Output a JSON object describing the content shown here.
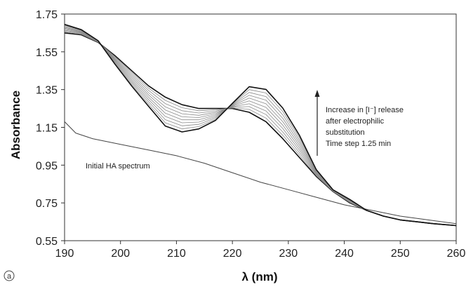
{
  "chart_data": {
    "type": "line",
    "title": "",
    "xlabel": "λ (nm)",
    "ylabel": "Absorbance",
    "xlim": [
      190,
      260
    ],
    "ylim": [
      0.55,
      1.75
    ],
    "xticks": [
      "190",
      "200",
      "210",
      "220",
      "230",
      "240",
      "250",
      "260"
    ],
    "yticks": [
      "0.55",
      "0.75",
      "0.95",
      "1.15",
      "1.35",
      "1.55",
      "1.75"
    ],
    "grid": false,
    "legend": "none",
    "annotations": [
      {
        "text": "Initial HA spectrum"
      },
      {
        "lines": [
          "Increase in [I⁻] release",
          "after electrophilic",
          "substitution",
          "Time step 1.25 min"
        ]
      }
    ],
    "panel_label": "a",
    "series": [
      {
        "role": "initial",
        "x": [
          190,
          192,
          195,
          200,
          205,
          210,
          215,
          220,
          225,
          230,
          235,
          240,
          245,
          250,
          255,
          260
        ],
        "y": [
          1.18,
          1.12,
          1.09,
          1.06,
          1.03,
          1.0,
          0.96,
          0.91,
          0.86,
          0.82,
          0.78,
          0.74,
          0.71,
          0.68,
          0.66,
          0.64
        ]
      },
      {
        "role": "time-series",
        "x": [
          190,
          193,
          196,
          199,
          202,
          205,
          208,
          211,
          214,
          217,
          220,
          223,
          226,
          229,
          232,
          235,
          238,
          241,
          244,
          247,
          250,
          253,
          256,
          260
        ],
        "y": [
          1.65,
          1.64,
          1.6,
          1.53,
          1.45,
          1.37,
          1.31,
          1.27,
          1.25,
          1.25,
          1.25,
          1.23,
          1.18,
          1.09,
          0.99,
          0.89,
          0.81,
          0.75,
          0.71,
          0.68,
          0.66,
          0.65,
          0.64,
          0.63
        ]
      },
      {
        "role": "time-series",
        "x": [
          190,
          193,
          196,
          199,
          202,
          205,
          208,
          211,
          214,
          217,
          220,
          223,
          226,
          229,
          232,
          235,
          238,
          241,
          244,
          247,
          250,
          253,
          256,
          260
        ],
        "y": [
          1.655,
          1.643,
          1.601,
          1.525,
          1.441,
          1.358,
          1.293,
          1.254,
          1.238,
          1.243,
          1.253,
          1.245,
          1.199,
          1.108,
          1.003,
          0.894,
          0.811,
          0.752,
          0.71,
          0.68,
          0.66,
          0.65,
          0.64,
          0.63
        ]
      },
      {
        "role": "time-series",
        "x": [
          190,
          193,
          196,
          199,
          202,
          205,
          208,
          211,
          214,
          217,
          220,
          223,
          226,
          229,
          232,
          235,
          238,
          241,
          244,
          247,
          250,
          253,
          256,
          260
        ],
        "y": [
          1.66,
          1.646,
          1.602,
          1.52,
          1.432,
          1.346,
          1.276,
          1.238,
          1.226,
          1.236,
          1.256,
          1.26,
          1.218,
          1.126,
          1.016,
          0.898,
          0.812,
          0.754,
          0.71,
          0.68,
          0.66,
          0.65,
          0.64,
          0.63
        ]
      },
      {
        "role": "time-series",
        "x": [
          190,
          193,
          196,
          199,
          202,
          205,
          208,
          211,
          214,
          217,
          220,
          223,
          226,
          229,
          232,
          235,
          238,
          241,
          244,
          247,
          250,
          253,
          256,
          260
        ],
        "y": [
          1.665,
          1.649,
          1.603,
          1.515,
          1.423,
          1.334,
          1.259,
          1.222,
          1.214,
          1.229,
          1.259,
          1.275,
          1.237,
          1.144,
          1.029,
          0.902,
          0.813,
          0.756,
          0.71,
          0.68,
          0.66,
          0.65,
          0.64,
          0.63
        ]
      },
      {
        "role": "time-series",
        "x": [
          190,
          193,
          196,
          199,
          202,
          205,
          208,
          211,
          214,
          217,
          220,
          223,
          226,
          229,
          232,
          235,
          238,
          241,
          244,
          247,
          250,
          253,
          256,
          260
        ],
        "y": [
          1.67,
          1.652,
          1.604,
          1.51,
          1.414,
          1.322,
          1.242,
          1.206,
          1.202,
          1.222,
          1.262,
          1.29,
          1.256,
          1.162,
          1.042,
          0.906,
          0.814,
          0.758,
          0.71,
          0.68,
          0.66,
          0.65,
          0.64,
          0.63
        ]
      },
      {
        "role": "time-series",
        "x": [
          190,
          193,
          196,
          199,
          202,
          205,
          208,
          211,
          214,
          217,
          220,
          223,
          226,
          229,
          232,
          235,
          238,
          241,
          244,
          247,
          250,
          253,
          256,
          260
        ],
        "y": [
          1.675,
          1.655,
          1.605,
          1.505,
          1.405,
          1.31,
          1.225,
          1.19,
          1.19,
          1.215,
          1.265,
          1.305,
          1.275,
          1.18,
          1.055,
          0.91,
          0.815,
          0.76,
          0.71,
          0.68,
          0.66,
          0.65,
          0.64,
          0.63
        ]
      },
      {
        "role": "time-series",
        "x": [
          190,
          193,
          196,
          199,
          202,
          205,
          208,
          211,
          214,
          217,
          220,
          223,
          226,
          229,
          232,
          235,
          238,
          241,
          244,
          247,
          250,
          253,
          256,
          260
        ],
        "y": [
          1.68,
          1.658,
          1.606,
          1.5,
          1.396,
          1.298,
          1.208,
          1.174,
          1.178,
          1.208,
          1.268,
          1.32,
          1.294,
          1.198,
          1.068,
          0.914,
          0.816,
          0.762,
          0.71,
          0.68,
          0.66,
          0.65,
          0.64,
          0.63
        ]
      },
      {
        "role": "time-series",
        "x": [
          190,
          193,
          196,
          199,
          202,
          205,
          208,
          211,
          214,
          217,
          220,
          223,
          226,
          229,
          232,
          235,
          238,
          241,
          244,
          247,
          250,
          253,
          256,
          260
        ],
        "y": [
          1.685,
          1.661,
          1.607,
          1.495,
          1.387,
          1.286,
          1.191,
          1.158,
          1.166,
          1.201,
          1.271,
          1.335,
          1.313,
          1.216,
          1.081,
          0.918,
          0.817,
          0.764,
          0.71,
          0.68,
          0.66,
          0.65,
          0.64,
          0.63
        ]
      },
      {
        "role": "time-series",
        "x": [
          190,
          193,
          196,
          199,
          202,
          205,
          208,
          211,
          214,
          217,
          220,
          223,
          226,
          229,
          232,
          235,
          238,
          241,
          244,
          247,
          250,
          253,
          256,
          260
        ],
        "y": [
          1.69,
          1.664,
          1.608,
          1.49,
          1.378,
          1.274,
          1.174,
          1.142,
          1.154,
          1.194,
          1.274,
          1.35,
          1.332,
          1.234,
          1.094,
          0.922,
          0.818,
          0.766,
          0.71,
          0.68,
          0.66,
          0.65,
          0.64,
          0.63
        ]
      },
      {
        "role": "time-series",
        "x": [
          190,
          193,
          196,
          199,
          202,
          205,
          208,
          211,
          214,
          217,
          220,
          223,
          226,
          229,
          232,
          235,
          238,
          241,
          244,
          247,
          250,
          253,
          256,
          260
        ],
        "y": [
          1.695,
          1.667,
          1.609,
          1.485,
          1.369,
          1.262,
          1.157,
          1.126,
          1.142,
          1.187,
          1.277,
          1.365,
          1.351,
          1.252,
          1.107,
          0.926,
          0.819,
          0.768,
          0.71,
          0.68,
          0.66,
          0.65,
          0.64,
          0.63
        ]
      }
    ]
  }
}
